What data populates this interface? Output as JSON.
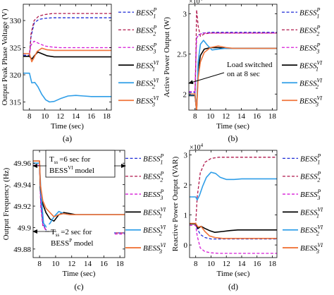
{
  "colors": {
    "bess_p1": "#1f2dd6",
    "bess_p2": "#b0184c",
    "bess_p3": "#d61ad6",
    "bess_vi1": "#000000",
    "bess_vi2": "#2f9ee8",
    "bess_vi3": "#f0743a"
  },
  "chart_data": [
    {
      "id": "a",
      "type": "line",
      "caption": "(a)",
      "xlabel": "Time (sec)",
      "ylabel": "Output Peak Phase Voltage (V)",
      "xlim": [
        7.2,
        18.6
      ],
      "ylim": [
        313.5,
        333
      ],
      "xticks": [
        8,
        10,
        12,
        14,
        16,
        18
      ],
      "yticks": [
        315,
        320,
        325,
        330
      ],
      "tick_labels_y": [
        "315",
        "320",
        "325",
        "330"
      ],
      "grid": false,
      "legend_position": "right",
      "series": [
        {
          "name": "BESS^P_1",
          "base": "BESS",
          "sup": "P",
          "sub": "1",
          "style": "dashed",
          "color_key": "bess_p1",
          "x": [
            7.2,
            8.0,
            8.2,
            8.6,
            9.2,
            10,
            11,
            12,
            18.6
          ],
          "y": [
            323.6,
            323.6,
            327,
            329.5,
            330.2,
            330.4,
            330.5,
            330.5,
            330.5
          ]
        },
        {
          "name": "BESS^P_2",
          "base": "BESS",
          "sup": "P",
          "sub": "2",
          "style": "dashed",
          "color_key": "bess_p2",
          "x": [
            7.2,
            8.0,
            8.2,
            8.6,
            9.2,
            10,
            11,
            12,
            18.6
          ],
          "y": [
            323.4,
            323.4,
            327.5,
            330,
            330.8,
            331.1,
            331.3,
            331.3,
            331.3
          ]
        },
        {
          "name": "BESS^P_3",
          "base": "BESS",
          "sup": "P",
          "sub": "3",
          "style": "dashed",
          "color_key": "bess_p3",
          "x": [
            7.2,
            8.0,
            8.2,
            8.6,
            9.2,
            10,
            11,
            12,
            18.6
          ],
          "y": [
            323.9,
            323.9,
            325.5,
            326.2,
            325.8,
            325.3,
            325.1,
            325.0,
            325.0
          ]
        },
        {
          "name": "BESS^VI_1",
          "base": "BESS",
          "sup": "VI",
          "sub": "1",
          "style": "solid",
          "color_key": "bess_vi1",
          "x": [
            7.2,
            8.0,
            8.3,
            8.7,
            9.1,
            9.6,
            10.3,
            11.2,
            12.5,
            14,
            16,
            18.6
          ],
          "y": [
            323.4,
            323.4,
            322.9,
            323.6,
            324.2,
            323.9,
            323.5,
            323.3,
            323.3,
            323.3,
            323.3,
            323.3
          ]
        },
        {
          "name": "BESS^VI_2",
          "base": "BESS",
          "sup": "VI",
          "sub": "2",
          "style": "solid",
          "color_key": "bess_vi2",
          "x": [
            7.2,
            8.0,
            8.3,
            8.7,
            9.1,
            9.6,
            10.1,
            10.6,
            11.2,
            12,
            13,
            14,
            15,
            16,
            17,
            18.6
          ],
          "y": [
            320.3,
            320.3,
            318.5,
            318.6,
            317.8,
            316.4,
            315.4,
            315.0,
            315.1,
            315.6,
            316.1,
            316.2,
            316.1,
            316.0,
            316.0,
            316.0
          ]
        },
        {
          "name": "BESS^VI_3",
          "base": "BESS",
          "sup": "VI",
          "sub": "3",
          "style": "solid",
          "color_key": "bess_vi3",
          "x": [
            7.2,
            8.0,
            8.3,
            8.6,
            9.0,
            9.6,
            10.3,
            11.2,
            12.5,
            14,
            16,
            18.6
          ],
          "y": [
            323.9,
            323.9,
            322.4,
            323.2,
            324.3,
            324.9,
            324.6,
            324.5,
            324.5,
            324.5,
            324.5,
            324.5
          ]
        }
      ]
    },
    {
      "id": "b",
      "type": "line",
      "caption": "(b)",
      "xlabel": "Time (sec)",
      "ylabel": "Active Power Output (W)",
      "multiplier": "×10",
      "multiplier_exp": "4",
      "xlim": [
        7.2,
        18.6
      ],
      "ylim": [
        1.8,
        3.12
      ],
      "xticks": [
        8,
        10,
        12,
        14,
        16,
        18
      ],
      "yticks": [
        2,
        2.5,
        3
      ],
      "tick_labels_y": [
        "2",
        "2.5",
        "3"
      ],
      "grid": false,
      "legend_position": "right",
      "annotation": {
        "lines": [
          "Load switched",
          "on at 8 sec"
        ],
        "arrow_to": [
          8.2,
          2.08
        ]
      },
      "series": [
        {
          "name": "BESS^P_1",
          "base": "BESS",
          "sup": "P",
          "sub": "1",
          "style": "dashed",
          "color_key": "bess_p1",
          "x": [
            7.2,
            8.0,
            8.1,
            8.2,
            8.5,
            9,
            10,
            11,
            12,
            18.6
          ],
          "y": [
            2.02,
            2.02,
            2.45,
            2.7,
            2.74,
            2.76,
            2.77,
            2.77,
            2.77,
            2.77
          ]
        },
        {
          "name": "BESS^P_2",
          "base": "BESS",
          "sup": "P",
          "sub": "2",
          "style": "dashed",
          "color_key": "bess_p2",
          "x": [
            7.2,
            8.0,
            8.1,
            8.2,
            8.4,
            8.7,
            9.2,
            10,
            11,
            12,
            18.6
          ],
          "y": [
            2.0,
            2.0,
            2.4,
            3.05,
            2.85,
            2.72,
            2.75,
            2.76,
            2.76,
            2.76,
            2.76
          ]
        },
        {
          "name": "BESS^P_3",
          "base": "BESS",
          "sup": "P",
          "sub": "3",
          "style": "dashed",
          "color_key": "bess_p3",
          "x": [
            7.2,
            8.0,
            8.1,
            8.2,
            8.5,
            9,
            10,
            11,
            12,
            18.6
          ],
          "y": [
            2.03,
            2.03,
            2.4,
            2.7,
            2.74,
            2.76,
            2.76,
            2.76,
            2.76,
            2.76
          ]
        },
        {
          "name": "BESS^VI_1",
          "base": "BESS",
          "sup": "VI",
          "sub": "1",
          "style": "solid",
          "color_key": "bess_vi1",
          "x": [
            7.2,
            8.0,
            8.2,
            8.4,
            8.7,
            9.2,
            10,
            11,
            12,
            13,
            14,
            18.6
          ],
          "y": [
            1.98,
            1.98,
            1.78,
            2.3,
            2.48,
            2.56,
            2.58,
            2.58,
            2.57,
            2.57,
            2.57,
            2.57
          ]
        },
        {
          "name": "BESS^VI_2",
          "base": "BESS",
          "sup": "VI",
          "sub": "2",
          "style": "solid",
          "color_key": "bess_vi2",
          "x": [
            7.2,
            8.0,
            8.2,
            8.4,
            8.7,
            9.1,
            9.6,
            10.2,
            11,
            12,
            13,
            14,
            18.6
          ],
          "y": [
            1.99,
            1.99,
            1.78,
            2.4,
            2.62,
            2.67,
            2.61,
            2.55,
            2.56,
            2.57,
            2.57,
            2.57,
            2.57
          ]
        },
        {
          "name": "BESS^VI_3",
          "base": "BESS",
          "sup": "VI",
          "sub": "3",
          "style": "solid",
          "color_key": "bess_vi3",
          "x": [
            7.2,
            8.0,
            8.2,
            8.4,
            8.7,
            9.2,
            10,
            11,
            12,
            13,
            14,
            18.6
          ],
          "y": [
            2.0,
            2.0,
            1.78,
            2.2,
            2.4,
            2.52,
            2.58,
            2.6,
            2.58,
            2.57,
            2.57,
            2.57
          ]
        }
      ]
    },
    {
      "id": "c",
      "type": "line",
      "caption": "(c)",
      "xlabel": "Time (sec)",
      "ylabel": "Output Frequency (Hz)",
      "xlim": [
        7.2,
        18.6
      ],
      "ylim": [
        49.872,
        49.972
      ],
      "xticks": [
        8,
        10,
        12,
        14,
        16,
        18
      ],
      "yticks": [
        49.88,
        49.9,
        49.92,
        49.94,
        49.96
      ],
      "tick_labels_y": [
        "49.88",
        "49.9",
        "49.92",
        "49.94",
        "49.96"
      ],
      "grid": false,
      "legend_position": "right",
      "annotations": [
        {
          "lines": [
            "T",
            "ss",
            "=6 sec for",
            "BESS",
            "VI",
            " model"
          ],
          "boxed": true
        },
        {
          "lines": [
            "T",
            "ss",
            "=2 sec for",
            "BESS",
            "P",
            " model"
          ],
          "boxed": false
        }
      ],
      "series": [
        {
          "name": "BESS^P_1",
          "base": "BESS",
          "sup": "P",
          "sub": "1",
          "style": "dashed",
          "color_key": "bess_p1",
          "x": [
            7.2,
            8.0,
            8.15,
            8.4,
            8.8,
            9.3,
            10,
            11,
            18.6
          ],
          "y": [
            49.96,
            49.96,
            49.925,
            49.904,
            49.898,
            49.896,
            49.895,
            49.895,
            49.895
          ]
        },
        {
          "name": "BESS^P_2",
          "base": "BESS",
          "sup": "P",
          "sub": "2",
          "style": "dashed",
          "color_key": "bess_p2",
          "x": [
            7.2,
            8.0,
            8.15,
            8.4,
            8.8,
            9.3,
            10,
            11,
            18.6
          ],
          "y": [
            49.962,
            49.962,
            49.92,
            49.902,
            49.898,
            49.896,
            49.895,
            49.895,
            49.895
          ]
        },
        {
          "name": "BESS^P_3",
          "base": "BESS",
          "sup": "P",
          "sub": "3",
          "style": "dashed",
          "color_key": "bess_p3",
          "x": [
            7.2,
            8.0,
            8.15,
            8.4,
            8.8,
            9.3,
            10,
            11,
            18.6
          ],
          "y": [
            49.958,
            49.958,
            49.922,
            49.903,
            49.897,
            49.895,
            49.894,
            49.894,
            49.894
          ]
        },
        {
          "name": "BESS^VI_1",
          "base": "BESS",
          "sup": "VI",
          "sub": "1",
          "style": "solid",
          "color_key": "bess_vi1",
          "x": [
            7.2,
            8.0,
            8.1,
            8.4,
            8.8,
            9.3,
            9.8,
            10.4,
            11,
            11.8,
            12.5,
            13.5,
            15,
            18.6
          ],
          "y": [
            49.962,
            49.962,
            49.935,
            49.922,
            49.914,
            49.908,
            49.906,
            49.912,
            49.914,
            49.913,
            49.912,
            49.912,
            49.912,
            49.912
          ]
        },
        {
          "name": "BESS^VI_2",
          "base": "BESS",
          "sup": "VI",
          "sub": "2",
          "style": "solid",
          "color_key": "bess_vi2",
          "x": [
            7.2,
            8.0,
            8.2,
            8.5,
            8.9,
            9.3,
            9.8,
            10.4,
            11,
            11.8,
            12.5,
            13.5,
            15,
            18.6
          ],
          "y": [
            49.96,
            49.96,
            49.93,
            49.904,
            49.9,
            49.904,
            49.91,
            49.915,
            49.913,
            49.912,
            49.912,
            49.912,
            49.912,
            49.912
          ]
        },
        {
          "name": "BESS^VI_3",
          "base": "BESS",
          "sup": "VI",
          "sub": "3",
          "style": "solid",
          "color_key": "bess_vi3",
          "x": [
            7.2,
            8.0,
            8.1,
            8.4,
            8.8,
            9.3,
            9.8,
            10.4,
            11,
            11.8,
            12.5,
            13.5,
            15,
            18.6
          ],
          "y": [
            49.962,
            49.962,
            49.94,
            49.925,
            49.918,
            49.914,
            49.91,
            49.912,
            49.913,
            49.912,
            49.912,
            49.912,
            49.912,
            49.912
          ]
        }
      ]
    },
    {
      "id": "d",
      "type": "line",
      "caption": "(d)",
      "xlabel": "Time (sec)",
      "ylabel": "Reactive Power Output (VAR)",
      "multiplier": "×10",
      "multiplier_exp": "4",
      "xlim": [
        7.2,
        18.6
      ],
      "ylim": [
        -0.42,
        3.15
      ],
      "xticks": [
        8,
        10,
        12,
        14,
        16,
        18
      ],
      "yticks": [
        0,
        1,
        2,
        3
      ],
      "tick_labels_y": [
        "0",
        "1",
        "2",
        "3"
      ],
      "grid": false,
      "legend_position": "right",
      "series": [
        {
          "name": "BESS^P_1",
          "base": "BESS",
          "sup": "P",
          "sub": "1",
          "style": "dashed",
          "color_key": "bess_p1",
          "x": [
            7.2,
            8.0,
            8.2,
            8.6,
            9.2,
            10,
            11,
            12,
            18.6
          ],
          "y": [
            0.7,
            0.7,
            0.55,
            0.35,
            0.25,
            0.2,
            0.2,
            0.2,
            0.2
          ]
        },
        {
          "name": "BESS^P_2",
          "base": "BESS",
          "sup": "P",
          "sub": "2",
          "style": "dashed",
          "color_key": "bess_p2",
          "x": [
            7.2,
            8.0,
            8.2,
            8.6,
            9.2,
            10,
            11,
            12,
            13,
            18.6
          ],
          "y": [
            0.7,
            0.7,
            1.6,
            2.4,
            2.75,
            2.88,
            2.92,
            2.92,
            2.92,
            2.92
          ]
        },
        {
          "name": "BESS^P_3",
          "base": "BESS",
          "sup": "P",
          "sub": "3",
          "style": "dashed",
          "color_key": "bess_p3",
          "x": [
            7.2,
            8.0,
            8.2,
            8.6,
            9.2,
            10,
            11,
            12,
            13,
            18.6
          ],
          "y": [
            0.65,
            0.65,
            0.3,
            -0.1,
            -0.22,
            -0.26,
            -0.28,
            -0.28,
            -0.28,
            -0.28
          ]
        },
        {
          "name": "BESS^VI_1",
          "base": "BESS",
          "sup": "VI",
          "sub": "1",
          "style": "solid",
          "color_key": "bess_vi1",
          "x": [
            7.2,
            8.0,
            8.3,
            8.7,
            9.2,
            9.8,
            10.5,
            11.5,
            12.5,
            13.5,
            15,
            18.6
          ],
          "y": [
            0.7,
            0.7,
            0.55,
            0.62,
            0.55,
            0.48,
            0.42,
            0.45,
            0.48,
            0.5,
            0.5,
            0.5
          ]
        },
        {
          "name": "BESS^VI_2",
          "base": "BESS",
          "sup": "VI",
          "sub": "2",
          "style": "solid",
          "color_key": "bess_vi2",
          "x": [
            7.2,
            8.0,
            8.2,
            8.5,
            8.9,
            9.4,
            10,
            10.6,
            11.2,
            12,
            13,
            14,
            15,
            18.6
          ],
          "y": [
            1.6,
            1.6,
            1.5,
            1.65,
            1.95,
            2.25,
            2.42,
            2.38,
            2.25,
            2.18,
            2.18,
            2.2,
            2.2,
            2.2
          ]
        },
        {
          "name": "BESS^VI_3",
          "base": "BESS",
          "sup": "VI",
          "sub": "3",
          "style": "solid",
          "color_key": "bess_vi3",
          "x": [
            7.2,
            8.0,
            8.3,
            8.7,
            9.2,
            9.8,
            10.5,
            11.5,
            12.5,
            13.5,
            15,
            18.6
          ],
          "y": [
            0.72,
            0.72,
            0.6,
            0.62,
            0.45,
            0.3,
            0.25,
            0.22,
            0.22,
            0.22,
            0.22,
            0.22
          ]
        }
      ]
    }
  ]
}
